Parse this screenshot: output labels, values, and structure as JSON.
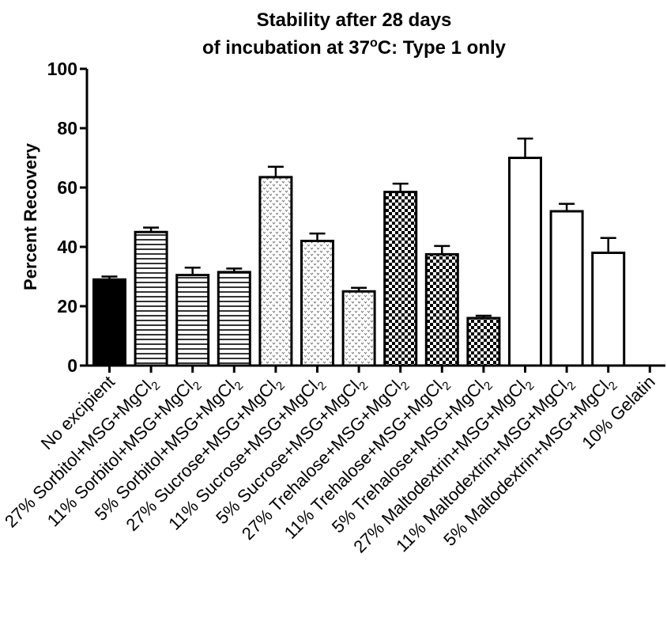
{
  "chart_data": {
    "type": "bar",
    "title_line1": "Stability after 28 days",
    "title_line2_pre": "of incubation at 37",
    "title_line2_sup": "o",
    "title_line2_post": "C: Type 1 only",
    "xlabel": "",
    "ylabel": "Percent Recovery",
    "ylim": [
      0,
      100
    ],
    "yticks": [
      "0",
      "20",
      "40",
      "60",
      "80",
      "100"
    ],
    "categories": [
      {
        "pre": "No excipient",
        "sub": ""
      },
      {
        "pre": "27% Sorbitol+MSG+MgCl",
        "sub": "2"
      },
      {
        "pre": "11% Sorbitol+MSG+MgCl",
        "sub": "2"
      },
      {
        "pre": "5% Sorbitol+MSG+MgCl",
        "sub": "2"
      },
      {
        "pre": "27% Sucrose+MSG+MgCl",
        "sub": "2"
      },
      {
        "pre": "11% Sucrose+MSG+MgCl",
        "sub": "2"
      },
      {
        "pre": "5% Sucrose+MSG+MgCl",
        "sub": "2"
      },
      {
        "pre": "27% Trehalose+MSG+MgCl",
        "sub": "2"
      },
      {
        "pre": "11% Trehalose+MSG+MgCl",
        "sub": "2"
      },
      {
        "pre": "5% Trehalose+MSG+MgCl",
        "sub": "2"
      },
      {
        "pre": "27% Maltodextrin+MSG+MgCl",
        "sub": "2"
      },
      {
        "pre": "11% Maltodextrin+MSG+MgCl",
        "sub": "2"
      },
      {
        "pre": "5% Maltodextrin+MSG+MgCl",
        "sub": "2"
      },
      {
        "pre": "10% Gelatin",
        "sub": ""
      }
    ],
    "values": [
      29,
      45,
      30.5,
      31.5,
      63.5,
      42,
      25,
      58.5,
      37.5,
      16,
      70,
      52,
      38,
      0
    ],
    "errors": [
      1,
      1.5,
      2.5,
      1.2,
      3.5,
      2.5,
      1.2,
      2.8,
      2.8,
      0.8,
      6.5,
      2.5,
      5,
      0
    ],
    "fills": [
      "solid",
      "hlines",
      "hlines",
      "hlines",
      "dots",
      "dots",
      "dots",
      "checker",
      "checker",
      "checker",
      "white",
      "white",
      "white",
      "none"
    ],
    "grid": false
  }
}
